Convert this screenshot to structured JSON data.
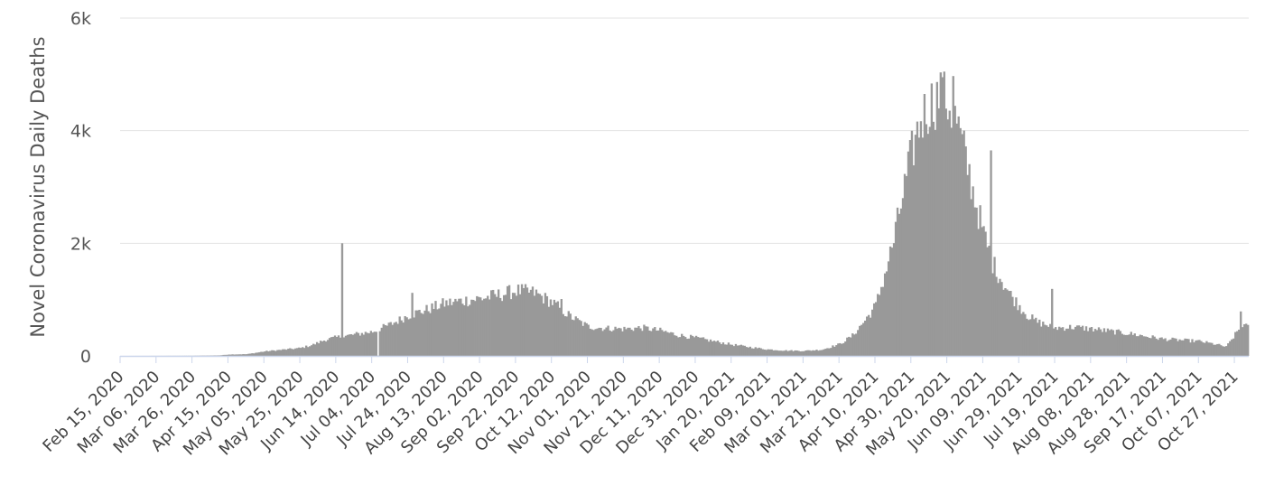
{
  "chart_data": {
    "type": "bar",
    "title": "",
    "xlabel": "",
    "ylabel": "Novel Coronavirus Daily Deaths",
    "ylim": [
      0,
      6000
    ],
    "grid": true,
    "legend": "none",
    "colors": {
      "bar": "#999999",
      "grid": "#e3e3e3",
      "axis": "#ccd6eb"
    },
    "y_ticks": [
      {
        "value": 0,
        "label": "0"
      },
      {
        "value": 2000,
        "label": "2k"
      },
      {
        "value": 4000,
        "label": "4k"
      },
      {
        "value": 6000,
        "label": "6k"
      }
    ],
    "x_start": "2020-02-15",
    "x_end": "2021-11-03",
    "x_ticks": [
      {
        "date": "2020-02-15",
        "label": "Feb 15, 2020"
      },
      {
        "date": "2020-03-06",
        "label": "Mar 06, 2020"
      },
      {
        "date": "2020-03-26",
        "label": "Mar 26, 2020"
      },
      {
        "date": "2020-04-15",
        "label": "Apr 15, 2020"
      },
      {
        "date": "2020-05-05",
        "label": "May 05, 2020"
      },
      {
        "date": "2020-05-25",
        "label": "May 25, 2020"
      },
      {
        "date": "2020-06-14",
        "label": "Jun 14, 2020"
      },
      {
        "date": "2020-07-04",
        "label": "Jul 04, 2020"
      },
      {
        "date": "2020-07-24",
        "label": "Jul 24, 2020"
      },
      {
        "date": "2020-08-13",
        "label": "Aug 13, 2020"
      },
      {
        "date": "2020-09-02",
        "label": "Sep 02, 2020"
      },
      {
        "date": "2020-09-22",
        "label": "Sep 22, 2020"
      },
      {
        "date": "2020-10-12",
        "label": "Oct 12, 2020"
      },
      {
        "date": "2020-11-01",
        "label": "Nov 01, 2020"
      },
      {
        "date": "2020-11-21",
        "label": "Nov 21, 2020"
      },
      {
        "date": "2020-12-11",
        "label": "Dec 11, 2020"
      },
      {
        "date": "2020-12-31",
        "label": "Dec 31, 2020"
      },
      {
        "date": "2021-01-20",
        "label": "Jan 20, 2021"
      },
      {
        "date": "2021-02-09",
        "label": "Feb 09, 2021"
      },
      {
        "date": "2021-03-01",
        "label": "Mar 01, 2021"
      },
      {
        "date": "2021-03-21",
        "label": "Mar 21, 2021"
      },
      {
        "date": "2021-04-10",
        "label": "Apr 10, 2021"
      },
      {
        "date": "2021-04-30",
        "label": "Apr 30, 2021"
      },
      {
        "date": "2021-05-20",
        "label": "May 20, 2021"
      },
      {
        "date": "2021-06-09",
        "label": "Jun 09, 2021"
      },
      {
        "date": "2021-06-29",
        "label": "Jun 29, 2021"
      },
      {
        "date": "2021-07-19",
        "label": "Jul 19, 2021"
      },
      {
        "date": "2021-08-08",
        "label": "Aug 08, 2021"
      },
      {
        "date": "2021-08-28",
        "label": "Aug 28, 2021"
      },
      {
        "date": "2021-09-17",
        "label": "Sep 17, 2021"
      },
      {
        "date": "2021-10-07",
        "label": "Oct 07, 2021"
      },
      {
        "date": "2021-10-27",
        "label": "Oct 27, 2021"
      }
    ],
    "series": [
      {
        "points": [
          [
            "2020-02-15",
            0
          ],
          [
            "2020-03-06",
            1
          ],
          [
            "2020-03-26",
            3
          ],
          [
            "2020-04-10",
            10
          ],
          [
            "2020-04-15",
            25
          ],
          [
            "2020-04-25",
            30
          ],
          [
            "2020-05-05",
            80
          ],
          [
            "2020-05-15",
            110
          ],
          [
            "2020-05-25",
            140
          ],
          [
            "2020-06-01",
            200
          ],
          [
            "2020-06-08",
            290
          ],
          [
            "2020-06-14",
            330
          ],
          [
            "2020-06-24",
            380
          ],
          [
            "2020-07-04",
            430
          ],
          [
            "2020-07-14",
            560
          ],
          [
            "2020-07-24",
            720
          ],
          [
            "2020-08-03",
            820
          ],
          [
            "2020-08-13",
            930
          ],
          [
            "2020-08-23",
            980
          ],
          [
            "2020-09-02",
            1020
          ],
          [
            "2020-09-12",
            1080
          ],
          [
            "2020-09-22",
            1160
          ],
          [
            "2020-10-02",
            1120
          ],
          [
            "2020-10-12",
            950
          ],
          [
            "2020-10-22",
            700
          ],
          [
            "2020-11-01",
            520
          ],
          [
            "2020-11-11",
            490
          ],
          [
            "2020-11-21",
            480
          ],
          [
            "2020-12-01",
            500
          ],
          [
            "2020-12-11",
            450
          ],
          [
            "2020-12-21",
            370
          ],
          [
            "2020-12-31",
            320
          ],
          [
            "2021-01-10",
            260
          ],
          [
            "2021-01-20",
            200
          ],
          [
            "2021-01-30",
            155
          ],
          [
            "2021-02-09",
            115
          ],
          [
            "2021-02-19",
            95
          ],
          [
            "2021-03-01",
            90
          ],
          [
            "2021-03-11",
            110
          ],
          [
            "2021-03-21",
            210
          ],
          [
            "2021-03-28",
            360
          ],
          [
            "2021-04-04",
            630
          ],
          [
            "2021-04-10",
            900
          ],
          [
            "2021-04-15",
            1450
          ],
          [
            "2021-04-20",
            2050
          ],
          [
            "2021-04-25",
            2850
          ],
          [
            "2021-04-30",
            3600
          ],
          [
            "2021-05-05",
            4200
          ],
          [
            "2021-05-10",
            4450
          ],
          [
            "2021-05-15",
            4620
          ],
          [
            "2021-05-20",
            4500
          ],
          [
            "2021-05-25",
            4150
          ],
          [
            "2021-05-30",
            3500
          ],
          [
            "2021-06-04",
            2800
          ],
          [
            "2021-06-09",
            2150
          ],
          [
            "2021-06-14",
            1650
          ],
          [
            "2021-06-19",
            1350
          ],
          [
            "2021-06-24",
            1080
          ],
          [
            "2021-06-29",
            880
          ],
          [
            "2021-07-04",
            700
          ],
          [
            "2021-07-09",
            600
          ],
          [
            "2021-07-19",
            500
          ],
          [
            "2021-07-29",
            510
          ],
          [
            "2021-08-08",
            480
          ],
          [
            "2021-08-18",
            440
          ],
          [
            "2021-08-28",
            400
          ],
          [
            "2021-09-07",
            350
          ],
          [
            "2021-09-17",
            300
          ],
          [
            "2021-09-27",
            280
          ],
          [
            "2021-10-07",
            260
          ],
          [
            "2021-10-17",
            200
          ],
          [
            "2021-10-22",
            160
          ],
          [
            "2021-10-27",
            380
          ],
          [
            "2021-10-31",
            560
          ],
          [
            "2021-11-03",
            500
          ]
        ],
        "spikes": [
          [
            "2020-06-17",
            2000
          ],
          [
            "2020-07-26",
            1120
          ],
          [
            "2020-10-17",
            1010
          ],
          [
            "2021-05-17",
            4950
          ],
          [
            "2021-05-23",
            4970
          ],
          [
            "2021-06-13",
            3650
          ],
          [
            "2021-07-17",
            1190
          ],
          [
            "2021-10-30",
            790
          ]
        ],
        "dips": [
          [
            "2020-07-07",
            5
          ]
        ]
      }
    ]
  }
}
